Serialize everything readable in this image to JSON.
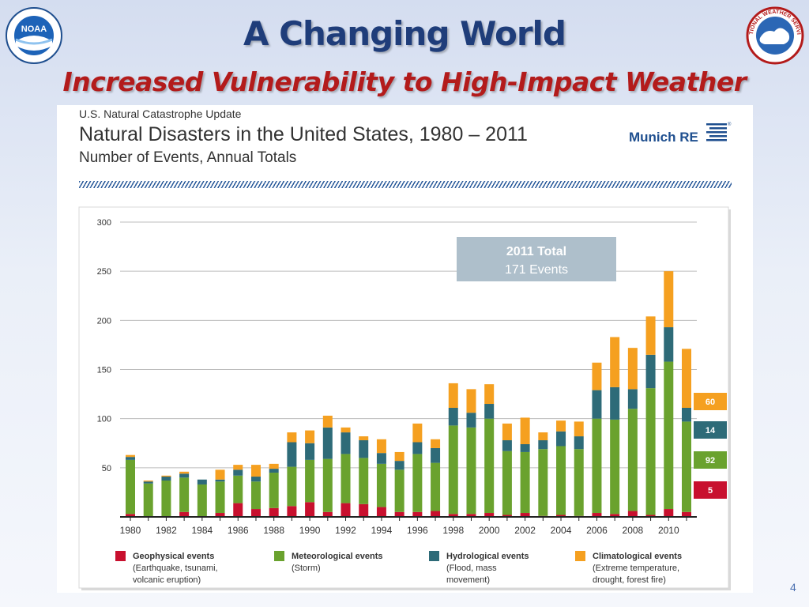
{
  "slide": {
    "title": "A Changing World",
    "subtitle": "Increased Vulnerability to High-Impact Weather",
    "page_number": "4",
    "noaa_logo_text": "NOAA",
    "nws_logo_text": "NATIONAL WEATHER SERVICE"
  },
  "chart_header": {
    "kicker": "U.S. Natural Catastrophe Update",
    "title": "Natural Disasters in the United States, 1980 – 2011",
    "subtitle": "Number of Events, Annual Totals",
    "brand": "Munich RE"
  },
  "colors": {
    "geophysical": "#c8102e",
    "meteorological": "#6aa22e",
    "hydrological": "#2e6b78",
    "climatological": "#f5a020",
    "title_blue": "#1f3d7a",
    "subtitle_red": "#b31b1b"
  },
  "chart_data": {
    "type": "bar",
    "stacked": true,
    "x": [
      1980,
      1981,
      1982,
      1983,
      1984,
      1985,
      1986,
      1987,
      1988,
      1989,
      1990,
      1991,
      1992,
      1993,
      1994,
      1995,
      1996,
      1997,
      1998,
      1999,
      2000,
      2001,
      2002,
      2003,
      2004,
      2005,
      2006,
      2007,
      2008,
      2009,
      2010,
      2011
    ],
    "x_tick_labels": [
      "1980",
      "1982",
      "1984",
      "1986",
      "1988",
      "1990",
      "1992",
      "1994",
      "1996",
      "1998",
      "2000",
      "2002",
      "2004",
      "2006",
      "2008",
      "2010"
    ],
    "ylim": [
      0,
      300
    ],
    "y_ticks": [
      "50",
      "100",
      "150",
      "200",
      "250",
      "300"
    ],
    "grid": true,
    "series": [
      {
        "name": "Geophysical events",
        "color": "#c8102e",
        "values": [
          3,
          0,
          0,
          5,
          0,
          4,
          14,
          8,
          9,
          11,
          15,
          5,
          14,
          13,
          10,
          5,
          5,
          6,
          3,
          3,
          4,
          2,
          4,
          1,
          2,
          1,
          4,
          3,
          6,
          2,
          8,
          5
        ]
      },
      {
        "name": "Meteorological events",
        "color": "#6aa22e",
        "values": [
          55,
          34,
          37,
          35,
          33,
          32,
          28,
          28,
          36,
          40,
          43,
          54,
          50,
          47,
          44,
          43,
          59,
          49,
          90,
          88,
          96,
          65,
          62,
          68,
          70,
          68,
          96,
          96,
          104,
          129,
          150,
          92
        ]
      },
      {
        "name": "Hydrological events",
        "color": "#2e6b78",
        "values": [
          3,
          2,
          4,
          4,
          5,
          2,
          6,
          5,
          4,
          25,
          17,
          32,
          22,
          18,
          11,
          9,
          12,
          15,
          18,
          15,
          15,
          11,
          8,
          9,
          15,
          13,
          29,
          33,
          20,
          34,
          35,
          14
        ]
      },
      {
        "name": "Climatological events",
        "color": "#f5a020",
        "values": [
          2,
          1,
          1,
          2,
          0,
          10,
          5,
          12,
          5,
          10,
          13,
          12,
          5,
          4,
          14,
          9,
          19,
          9,
          25,
          24,
          20,
          17,
          27,
          8,
          11,
          15,
          28,
          51,
          42,
          39,
          57,
          60
        ]
      }
    ],
    "annotation": {
      "title": "2011 Total",
      "value": "171 Events"
    },
    "value_labels_2011": [
      "60",
      "14",
      "92",
      "5"
    ],
    "legend": [
      {
        "label": "Geophysical events",
        "sub1": "(Earthquake, tsunami,",
        "sub2": "volcanic eruption)",
        "color": "#c8102e"
      },
      {
        "label": "Meteorological events",
        "sub1": "(Storm)",
        "sub2": "",
        "color": "#6aa22e"
      },
      {
        "label": "Hydrological events",
        "sub1": "(Flood, mass",
        "sub2": "movement)",
        "color": "#2e6b78"
      },
      {
        "label": "Climatological events",
        "sub1": "(Extreme temperature,",
        "sub2": "drought, forest fire)",
        "color": "#f5a020"
      }
    ],
    "legend_position": "bottom"
  }
}
